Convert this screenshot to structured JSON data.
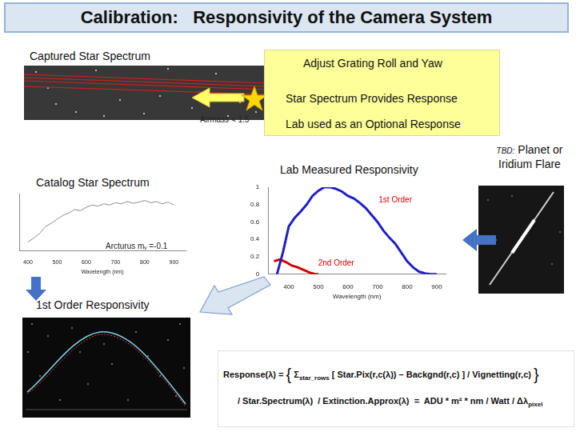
{
  "title": "Calibration:   Responsivity of the Camera System",
  "labels": {
    "captured": "Captured Star Spectrum",
    "first_order": "1st Order Responsivity",
    "airmass": "Airmass < 1.5"
  },
  "callout": [
    "Adjust Grating Roll and Yaw",
    "Star Spectrum Provides Response",
    "Lab used as an Optional Response"
  ],
  "tbd": {
    "tag": "TBD:",
    "lines": [
      "Planet or",
      "Iridium Flare"
    ]
  },
  "formula": [
    [
      {
        "text": "Response(λ) = "
      },
      {
        "text": "{"
      },
      {
        "text": " Σ"
      },
      {
        "sub": "star_rows"
      },
      {
        "text": " [ Star.Pix(r,c(λ)) – Backgnd(r,c) ] / Vignetting(r,c) "
      },
      {
        "text": "}"
      }
    ],
    [
      {
        "text": "/ Star.Spectrum(λ)  / Extinction.Approx(λ)  =  ADU * m² * nm / Watt / Δλ"
      },
      {
        "sub": "pixel"
      }
    ]
  ],
  "chart_data": [
    {
      "type": "line",
      "title": "Catalog Star Spectrum",
      "x_label": "Wavelength (nm)",
      "annotations": [
        {
          "text": "Arcturus mᵥ =-0.1"
        }
      ],
      "x": [
        400,
        420,
        440,
        460,
        480,
        500,
        520,
        540,
        560,
        580,
        600,
        620,
        640,
        660,
        680,
        700,
        720,
        740,
        760,
        780,
        800,
        820,
        840,
        860,
        880,
        900
      ],
      "series": [
        {
          "color": "#8c8c8c",
          "values": [
            0.15,
            0.22,
            0.3,
            0.42,
            0.48,
            0.55,
            0.62,
            0.66,
            0.72,
            0.7,
            0.76,
            0.8,
            0.78,
            0.82,
            0.8,
            0.84,
            0.82,
            0.86,
            0.83,
            0.85,
            0.88,
            0.84,
            0.86,
            0.82,
            0.85,
            0.8
          ]
        }
      ],
      "xlim": [
        370,
        940
      ],
      "xticks": [
        400,
        500,
        600,
        700,
        800,
        900
      ],
      "ylim": [
        0,
        1
      ],
      "tick_labels": "x",
      "grid": false
    },
    {
      "type": "line",
      "title": "Lab Measured Responsivity",
      "x_label": "Wavelength (nm)",
      "series": [
        {
          "name": "1st Order",
          "color": "#1f1fc8",
          "label_x": 760,
          "label_y": 0.85,
          "x": [
            360,
            380,
            400,
            420,
            440,
            460,
            480,
            500,
            520,
            540,
            560,
            580,
            600,
            620,
            640,
            660,
            680,
            700,
            720,
            740,
            760,
            780,
            800,
            820,
            840,
            860,
            880,
            900
          ],
          "values": [
            0,
            0.25,
            0.55,
            0.65,
            0.72,
            0.8,
            0.9,
            0.96,
            1.0,
            1.0,
            0.98,
            0.95,
            0.9,
            0.87,
            0.82,
            0.76,
            0.68,
            0.6,
            0.5,
            0.42,
            0.35,
            0.25,
            0.15,
            0.08,
            0.03,
            0.01,
            0,
            0
          ]
        },
        {
          "name": "2nd Order",
          "color": "#d00000",
          "label_x": 560,
          "label_y": 0.12,
          "x": [
            350,
            370,
            390,
            410,
            430,
            450,
            470,
            490,
            500
          ],
          "values": [
            0.15,
            0.17,
            0.14,
            0.1,
            0.08,
            0.05,
            0.02,
            0,
            0
          ]
        }
      ],
      "xlim": [
        330,
        930
      ],
      "xticks": [
        400,
        500,
        600,
        700,
        800,
        900
      ],
      "ylim": [
        0,
        1
      ],
      "yticks": [
        0,
        0.2,
        0.4,
        0.6,
        0.8,
        1
      ],
      "grid": false
    }
  ]
}
